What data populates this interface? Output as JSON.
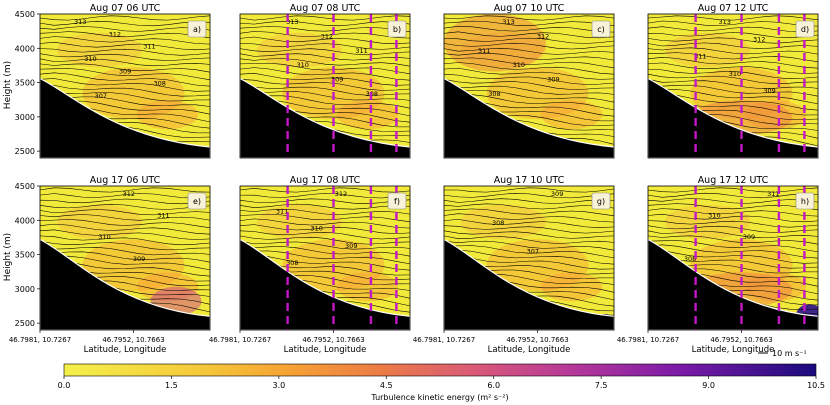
{
  "chart_data": {
    "type": "heatmap",
    "description_note": "",
    "panels": [
      {
        "label": "a)",
        "title": "Aug 07 06 UTC",
        "vertical_lines": false,
        "contours": [
          "313",
          "312",
          "311",
          "310",
          "309",
          "308",
          "307"
        ]
      },
      {
        "label": "b)",
        "title": "Aug 07 08 UTC",
        "vertical_lines": true,
        "contours": [
          "313",
          "312",
          "311",
          "310",
          "309",
          "308"
        ]
      },
      {
        "label": "c)",
        "title": "Aug 07 10 UTC",
        "vertical_lines": false,
        "contours": [
          "313",
          "312",
          "311",
          "310",
          "309",
          "308"
        ]
      },
      {
        "label": "d)",
        "title": "Aug 07 12 UTC",
        "vertical_lines": true,
        "contours": [
          "313",
          "312",
          "311",
          "310",
          "309"
        ]
      },
      {
        "label": "e)",
        "title": "Aug 17 06 UTC",
        "vertical_lines": false,
        "contours": [
          "312",
          "311",
          "310",
          "309"
        ]
      },
      {
        "label": "f)",
        "title": "Aug 17 08 UTC",
        "vertical_lines": true,
        "contours": [
          "312",
          "311",
          "310",
          "309",
          "308"
        ]
      },
      {
        "label": "g)",
        "title": "Aug 17 10 UTC",
        "vertical_lines": false,
        "contours": [
          "309",
          "308",
          "307"
        ]
      },
      {
        "label": "h)",
        "title": "Aug 17 12 UTC",
        "vertical_lines": true,
        "contours": [
          "311",
          "310",
          "309",
          "308"
        ]
      }
    ],
    "ylabel": "Height (m)",
    "xlabel": "Latitude, Longitude",
    "yticks": [
      2500,
      3000,
      3500,
      4000,
      4500
    ],
    "ylim": [
      2400,
      4500
    ],
    "xticks": [
      "46.7981, 10.7267",
      "46.7952, 10.7663"
    ],
    "colorbar": {
      "label": "Turbulence kinetic energy (m² s⁻²)",
      "ticks": [
        "0.0",
        "1.5",
        "3.0",
        "4.5",
        "6.0",
        "7.5",
        "9.0",
        "10.5"
      ],
      "range": [
        0,
        10.5
      ]
    },
    "wind_reference": "10 m s⁻¹"
  },
  "colors": {
    "low": "#f2ea3a",
    "mid": "#f7a135",
    "high": "#cf4f8a",
    "top": "#2c0f91",
    "terrain": "#000000",
    "vline": "#c417c8"
  }
}
